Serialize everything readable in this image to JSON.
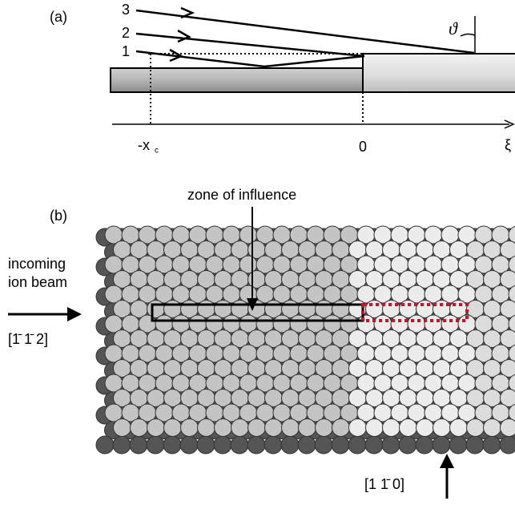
{
  "panel_a": {
    "label": "(a)",
    "rays": [
      "3",
      "2",
      "1"
    ],
    "angle": "ϑ",
    "axis": {
      "xc": "-x",
      "xc_sub": "c",
      "zero": "0",
      "xi": "ξ"
    }
  },
  "panel_b": {
    "label": "(b)",
    "zone": "zone of influence",
    "beam": [
      "incoming",
      "ion beam"
    ],
    "beam_dir": "[1̄ 1̄ 2]",
    "surface_dir": "[1 1̄ 0]"
  }
}
